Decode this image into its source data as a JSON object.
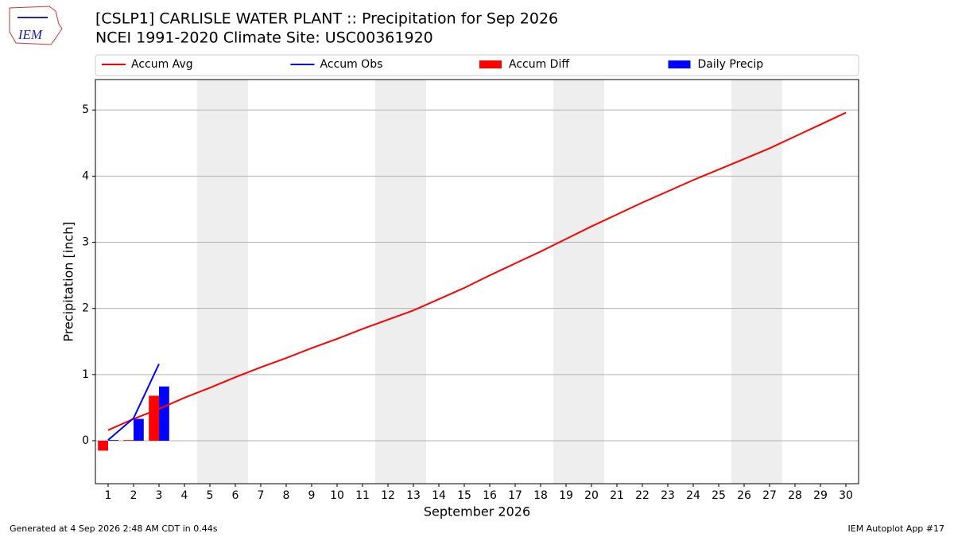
{
  "logo": "IEM",
  "footer": {
    "left": "Generated at 4 Sep 2026 2:48 AM CDT in 0.44s",
    "right": "IEM Autoplot App #17"
  },
  "chart_data": {
    "type": "combo",
    "title": "[CSLP1] CARLISLE WATER PLANT :: Precipitation for Sep 2026",
    "subtitle": "NCEI 1991-2020 Climate Site: USC00361920",
    "xlabel": "September 2026",
    "ylabel": "Precipitation [inch]",
    "x": [
      1,
      2,
      3,
      4,
      5,
      6,
      7,
      8,
      9,
      10,
      11,
      12,
      13,
      14,
      15,
      16,
      17,
      18,
      19,
      20,
      21,
      22,
      23,
      24,
      25,
      26,
      27,
      28,
      29,
      30
    ],
    "xlim": [
      0.5,
      30.5
    ],
    "xticks": [
      1,
      2,
      3,
      4,
      5,
      6,
      7,
      8,
      9,
      10,
      11,
      12,
      13,
      14,
      15,
      16,
      17,
      18,
      19,
      20,
      21,
      22,
      23,
      24,
      25,
      26,
      27,
      28,
      29,
      30
    ],
    "ylim": [
      -0.65,
      5.46
    ],
    "yticks": [
      0,
      1,
      2,
      3,
      4,
      5
    ],
    "grid": true,
    "weekend_spans": [
      [
        4.5,
        6.5
      ],
      [
        11.5,
        13.5
      ],
      [
        18.5,
        20.5
      ],
      [
        25.5,
        27.5
      ]
    ],
    "legend": "top",
    "series": [
      {
        "name": "Accum Avg",
        "type": "line",
        "color": "#ff0000",
        "values": [
          0.16,
          0.33,
          0.48,
          0.65,
          0.8,
          0.96,
          1.11,
          1.25,
          1.4,
          1.54,
          1.69,
          1.83,
          1.97,
          2.14,
          2.31,
          2.5,
          2.68,
          2.86,
          3.05,
          3.24,
          3.42,
          3.6,
          3.77,
          3.94,
          4.1,
          4.26,
          4.42,
          4.6,
          4.78,
          4.96
        ]
      },
      {
        "name": "Accum Obs",
        "type": "line",
        "color": "#0000ff",
        "values": [
          0.01,
          0.34,
          1.16,
          null,
          null,
          null,
          null,
          null,
          null,
          null,
          null,
          null,
          null,
          null,
          null,
          null,
          null,
          null,
          null,
          null,
          null,
          null,
          null,
          null,
          null,
          null,
          null,
          null,
          null,
          null
        ]
      },
      {
        "name": "Accum Diff",
        "type": "bar",
        "color": "#ff0000",
        "offset": -0.4,
        "width": 0.4,
        "values": [
          -0.15,
          0.01,
          0.68,
          null,
          null,
          null,
          null,
          null,
          null,
          null,
          null,
          null,
          null,
          null,
          null,
          null,
          null,
          null,
          null,
          null,
          null,
          null,
          null,
          null,
          null,
          null,
          null,
          null,
          null,
          null
        ]
      },
      {
        "name": "Daily Precip",
        "type": "bar",
        "color": "#0000ff",
        "offset": 0,
        "width": 0.4,
        "values": [
          0.01,
          0.33,
          0.82,
          null,
          null,
          null,
          null,
          null,
          null,
          null,
          null,
          null,
          null,
          null,
          null,
          null,
          null,
          null,
          null,
          null,
          null,
          null,
          null,
          null,
          null,
          null,
          null,
          null,
          null,
          null
        ]
      }
    ]
  }
}
